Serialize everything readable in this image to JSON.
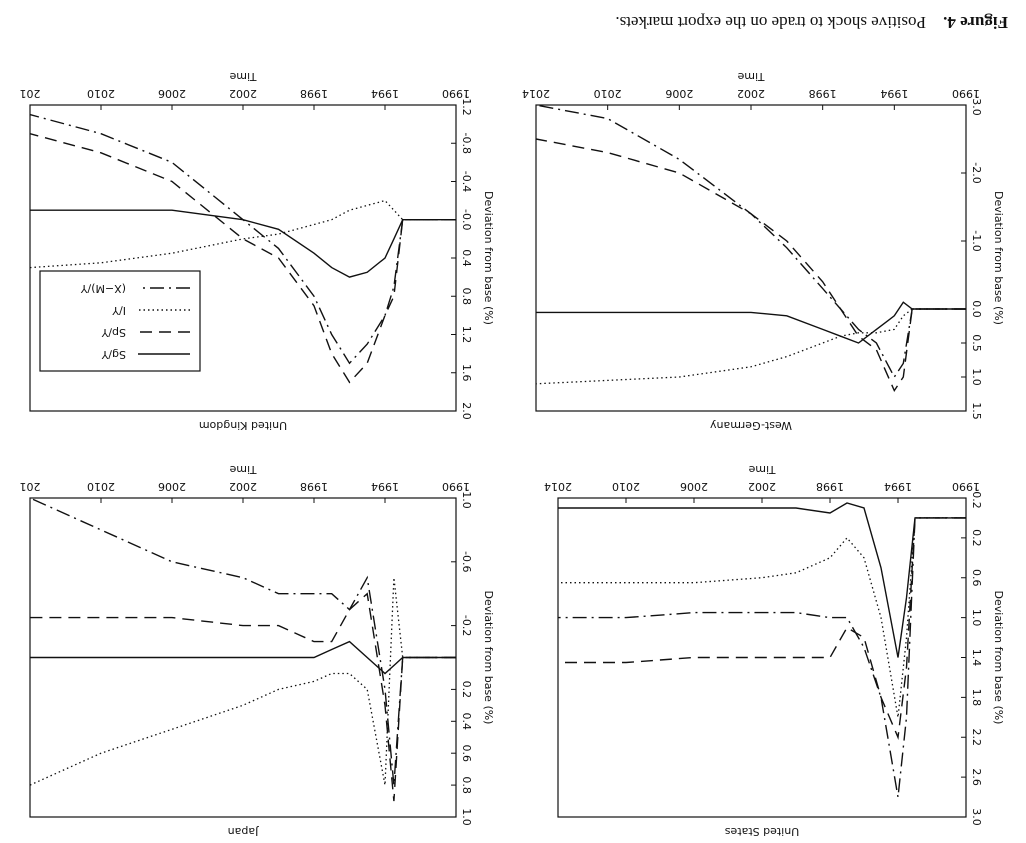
{
  "figure": {
    "label": "Figure 4.",
    "caption": "Positive shock to trade on the export markets."
  },
  "chart_data": [
    {
      "type": "line",
      "title": "United States",
      "x_label": "Time",
      "y_label": "Deviation from base (%)",
      "xlim": [
        1990,
        2014
      ],
      "xticks": [
        1990,
        1994,
        1998,
        2002,
        2006,
        2010,
        2014
      ],
      "ylim": [
        -0.2,
        3.0
      ],
      "yticks": [
        -0.2,
        0.2,
        0.6,
        {
          "value": 1,
          "label": "1.0"
        },
        1.4,
        1.8,
        2.2,
        2.6,
        {
          "value": 3,
          "label": "3.0"
        }
      ],
      "x": [
        1990,
        1993,
        1993.5,
        1994,
        1995,
        1996,
        1997,
        1998,
        2000,
        2002,
        2006,
        2010,
        2014
      ],
      "series": [
        {
          "dash": "solid",
          "color": "#111",
          "values": [
            0,
            0,
            0.8,
            1.4,
            0.5,
            -0.1,
            -0.15,
            -0.05,
            -0.1,
            -0.1,
            -0.1,
            -0.1,
            -0.1
          ]
        },
        {
          "dash": "dashed",
          "color": "#111",
          "values": [
            0,
            0,
            1.5,
            2.2,
            1.8,
            1.2,
            1.1,
            1.4,
            1.4,
            1.4,
            1.4,
            1.45,
            1.45
          ]
        },
        {
          "dash": "dotted",
          "color": "#111",
          "values": [
            0,
            0,
            1.2,
            2.0,
            1.0,
            0.4,
            0.2,
            0.4,
            0.55,
            0.6,
            0.65,
            0.65,
            0.65
          ]
        },
        {
          "dash": "dashdot",
          "color": "#111",
          "values": [
            0,
            0,
            2.0,
            2.8,
            1.8,
            1.3,
            1.0,
            1.0,
            0.95,
            0.95,
            0.95,
            1.0,
            1.0
          ]
        }
      ]
    },
    {
      "type": "line",
      "title": "Japan",
      "x_label": "Time",
      "y_label": "Deviation from base (%)",
      "xlim": [
        1990,
        2014
      ],
      "xticks": [
        1990,
        1994,
        1998,
        2002,
        2006,
        2010,
        {
          "value": 2014,
          "label": "201"
        }
      ],
      "ylim": [
        -1,
        1
      ],
      "yticks": [
        {
          "value": -1,
          "label": "-1.0"
        },
        -0.6,
        -0.2,
        0.2,
        0.4,
        0.6,
        0.8,
        {
          "value": 1,
          "label": "1.0"
        }
      ],
      "x": [
        1990,
        1993,
        1993.5,
        1994,
        1995,
        1996,
        1997,
        1998,
        2000,
        2002,
        2006,
        2010,
        2014
      ],
      "series": [
        {
          "dash": "solid",
          "color": "#111",
          "values": [
            0,
            0,
            0.05,
            0.1,
            0,
            -0.1,
            -0.05,
            0,
            0,
            0,
            0,
            0,
            0
          ]
        },
        {
          "dash": "dashed",
          "color": "#111",
          "values": [
            0,
            0,
            0.9,
            0.3,
            -0.4,
            -0.3,
            -0.1,
            -0.1,
            -0.2,
            -0.2,
            -0.25,
            -0.25,
            -0.25
          ]
        },
        {
          "dash": "dotted",
          "color": "#111",
          "values": [
            0,
            0,
            -0.5,
            0.8,
            0.2,
            0.1,
            0.1,
            0.15,
            0.2,
            0.3,
            0.45,
            0.6,
            0.8
          ]
        },
        {
          "dash": "dashdot",
          "color": "#111",
          "values": [
            0,
            0,
            0.8,
            0.2,
            -0.5,
            -0.3,
            -0.4,
            -0.4,
            -0.4,
            -0.5,
            -0.6,
            -0.8,
            -1.0
          ]
        }
      ]
    },
    {
      "type": "line",
      "title": "West-Germany",
      "x_label": "Time",
      "y_label": "Deviation from base (%)",
      "xlim": [
        1990,
        2014
      ],
      "xticks": [
        1990,
        1994,
        1998,
        2002,
        2006,
        2010,
        2014
      ],
      "ylim": [
        -3,
        1.5
      ],
      "yticks": [
        {
          "value": -3,
          "label": "-3.0"
        },
        {
          "value": -2,
          "label": "-2.0"
        },
        {
          "value": -1,
          "label": "-1.0"
        },
        {
          "value": 0,
          "label": "0.0"
        },
        0.5,
        {
          "value": 1,
          "label": "1.0"
        },
        1.5
      ],
      "x": [
        1990,
        1993,
        1993.5,
        1994,
        1995,
        1996,
        1997,
        1998,
        2000,
        2002,
        2006,
        2010,
        2014
      ],
      "series": [
        {
          "dash": "solid",
          "color": "#111",
          "values": [
            0,
            0,
            -0.1,
            0.1,
            0.3,
            0.5,
            0.4,
            0.3,
            0.1,
            0.05,
            0.05,
            0.05,
            0.05
          ]
        },
        {
          "dash": "dashed",
          "color": "#111",
          "values": [
            0,
            0,
            1.0,
            1.2,
            0.6,
            0.4,
            0,
            -0.4,
            -1.0,
            -1.4,
            -2.0,
            -2.3,
            -2.5
          ]
        },
        {
          "dash": "dotted",
          "color": "#111",
          "values": [
            0,
            0,
            0.1,
            0.3,
            0.35,
            0.35,
            0.4,
            0.5,
            0.7,
            0.85,
            1.0,
            1.05,
            1.1
          ]
        },
        {
          "dash": "dashdot",
          "color": "#111",
          "values": [
            0,
            0,
            0.8,
            1.0,
            0.5,
            0.3,
            0,
            -0.3,
            -0.9,
            -1.4,
            -2.2,
            -2.8,
            -3.0
          ]
        }
      ]
    },
    {
      "type": "line",
      "title": "United Kingdom",
      "x_label": "Time",
      "y_label": "Deviation from base (%)",
      "xlim": [
        1990,
        2014
      ],
      "xticks": [
        1990,
        1994,
        1998,
        2002,
        2006,
        2010,
        {
          "value": 2014,
          "label": "201"
        }
      ],
      "ylim": [
        -1.2,
        2.0
      ],
      "yticks": [
        -1.2,
        -0.8,
        -0.4,
        {
          "value": 0,
          "label": "-0.0"
        },
        0.4,
        0.8,
        1.2,
        1.6,
        {
          "value": 2,
          "label": "2.0"
        }
      ],
      "x": [
        1990,
        1993,
        1993.5,
        1994,
        1995,
        1996,
        1997,
        1998,
        2000,
        2002,
        2006,
        2010,
        2014
      ],
      "legend": "upper right",
      "series": [
        {
          "name": "Sg/Y",
          "dash": "solid",
          "color": "#111",
          "values": [
            0,
            0,
            0.2,
            0.4,
            0.55,
            0.6,
            0.5,
            0.35,
            0.1,
            0,
            -0.1,
            -0.1,
            -0.1
          ]
        },
        {
          "name": "Sp/Y",
          "dash": "dashed",
          "color": "#111",
          "values": [
            0,
            0,
            0.8,
            1.0,
            1.5,
            1.7,
            1.4,
            0.9,
            0.4,
            0.2,
            -0.4,
            -0.7,
            -0.9
          ]
        },
        {
          "name": "I/Y",
          "dash": "dotted",
          "color": "#111",
          "values": [
            0,
            0,
            -0.1,
            -0.2,
            -0.15,
            -0.1,
            0,
            0.05,
            0.15,
            0.2,
            0.35,
            0.45,
            0.5
          ]
        },
        {
          "name": "(X−M)/Y",
          "dash": "dashdot",
          "color": "#111",
          "values": [
            0,
            0,
            0.7,
            1.0,
            1.3,
            1.5,
            1.2,
            0.8,
            0.3,
            0,
            -0.6,
            -0.9,
            -1.1
          ]
        }
      ]
    }
  ]
}
